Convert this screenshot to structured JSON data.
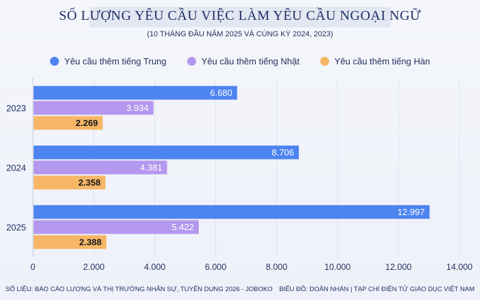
{
  "title": "SỐ LƯỢNG YÊU CẦU VIỆC LÀM YÊU CẦU NGOẠI NGỮ",
  "subtitle": "(10 THÁNG ĐẦU NĂM 2025 VÀ CÙNG KỲ 2024, 2023)",
  "footer": {
    "source": "SỐ LIỆU: BÁO CÁO LƯƠNG VÀ THỊ TRƯỜNG NHÂN SỰ, TUYỂN DỤNG 2026 - JOBOKO",
    "credit": "BIỂU ĐỒ: DOÃN NHÀN | TẠP CHÍ ĐIỆN TỬ GIÁO DỤC VIỆT NAM"
  },
  "chart_data": {
    "type": "bar",
    "orientation": "horizontal",
    "categories": [
      "2023",
      "2024",
      "2025"
    ],
    "series": [
      {
        "name": "Yêu cầu thêm tiếng Trung",
        "values": [
          6680,
          8706,
          12997
        ],
        "labels": [
          "6.680",
          "8.706",
          "12.997"
        ],
        "color": "#4d84f0"
      },
      {
        "name": "Yêu cầu thêm tiếng Nhật",
        "values": [
          3934,
          4381,
          5422
        ],
        "labels": [
          "3.934",
          "4.381",
          "5.422"
        ],
        "color": "#b497ee"
      },
      {
        "name": "Yêu cầu thêm tiếng Hàn",
        "values": [
          2269,
          2358,
          2388
        ],
        "labels": [
          "2.269",
          "2.358",
          "2.388"
        ],
        "color": "#f6b666"
      }
    ],
    "xlim": [
      0,
      14000
    ],
    "xticks": [
      0,
      2000,
      4000,
      6000,
      8000,
      10000,
      12000,
      14000
    ],
    "xtick_labels": [
      "0",
      "2.000",
      "4.000",
      "6.000",
      "8.000",
      "10.000",
      "12.000",
      "14.000"
    ],
    "legend_position": "top-center",
    "grid": true
  }
}
